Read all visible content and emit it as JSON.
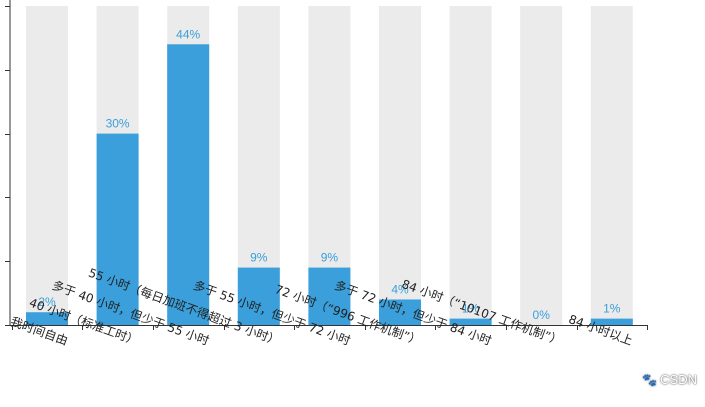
{
  "chart_data": {
    "type": "bar",
    "categories": [
      "我时间自由",
      "40 小时（标准工时）",
      "多于 40 小时，但少于 55 小时",
      "55 小时（每日加班不得超过 3 小时）",
      "多于 55 小时，但少于 72 小时",
      "72 小时（“996 工作机制”）",
      "多于 72 小时，但少于 84 小时",
      "84 小时（“10107 工作机制”）",
      "84 小时以上"
    ],
    "values": [
      2,
      30,
      44,
      9,
      9,
      4,
      1,
      0,
      1
    ],
    "value_labels": [
      "2%",
      "30%",
      "44%",
      "9%",
      "9%",
      "4%",
      "1%",
      "0%",
      "1%"
    ],
    "ylim": [
      0,
      50
    ],
    "colors": {
      "bar": "#3a9fda",
      "track": "#ebebeb",
      "axis": "#333333",
      "label": "#3a9fda"
    }
  },
  "watermark": {
    "icon": "paw-icon",
    "text": "CSDN"
  }
}
